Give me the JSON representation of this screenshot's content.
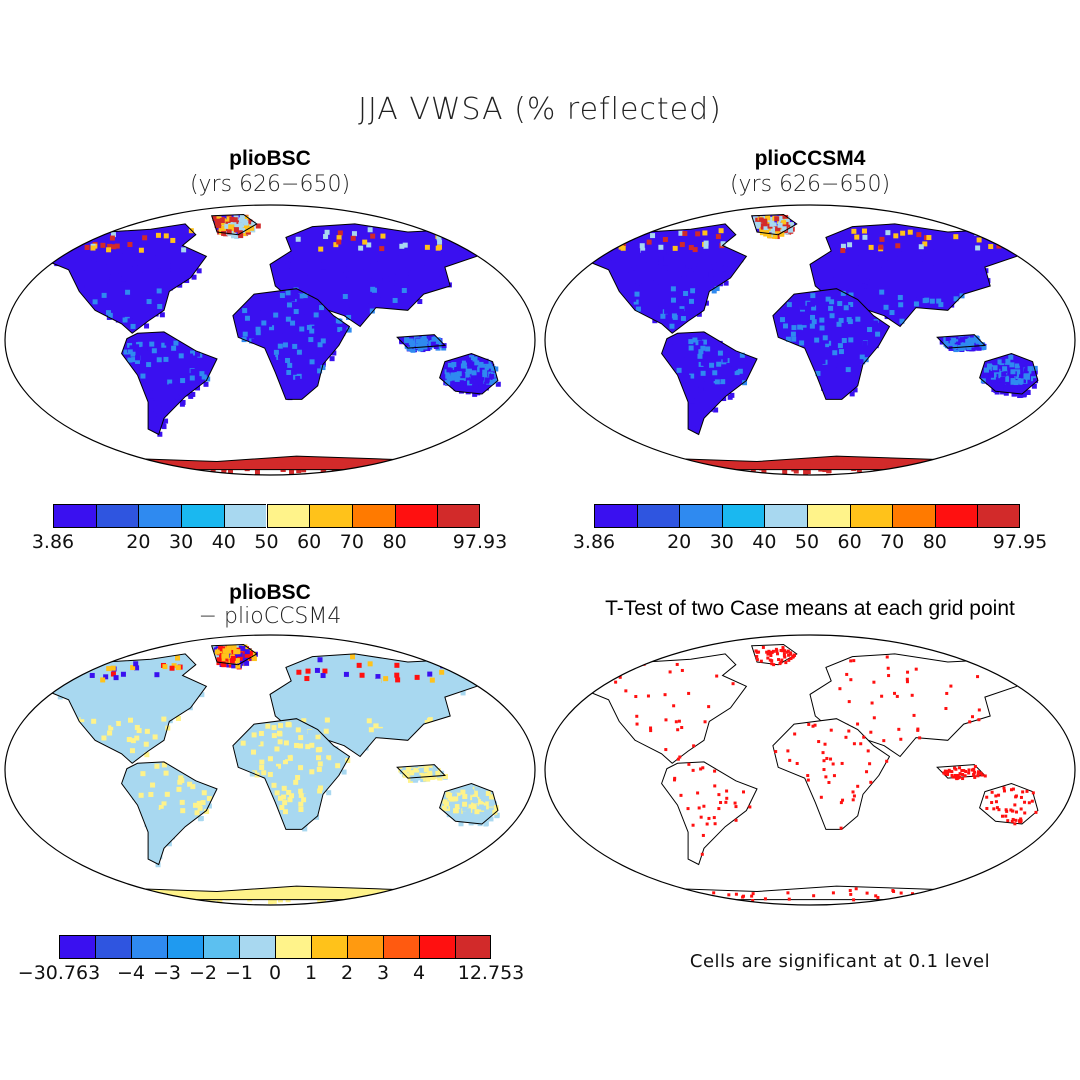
{
  "figure": {
    "title": "JJA VWSA (% reflected)"
  },
  "panels": [
    {
      "title": "plioBSC",
      "subtitle": "(yrs 626−650)",
      "colorbar": {
        "colors": [
          "#3a10f0",
          "#2f55e0",
          "#2f8af0",
          "#1ab8f0",
          "#a8d8f0",
          "#fff38a",
          "#ffc21a",
          "#ff7a00",
          "#ff1010",
          "#d22a2a"
        ],
        "labels": [
          "3.86",
          "20",
          "30",
          "40",
          "50",
          "60",
          "70",
          "80",
          "97.93"
        ],
        "label_bounds": [
          0,
          2,
          3,
          4,
          5,
          6,
          7,
          8,
          10
        ]
      }
    },
    {
      "title": "plioCCSM4",
      "subtitle": "(yrs 626−650)",
      "colorbar": {
        "colors": [
          "#3a10f0",
          "#2f55e0",
          "#2f8af0",
          "#1ab8f0",
          "#a8d8f0",
          "#fff38a",
          "#ffc21a",
          "#ff7a00",
          "#ff1010",
          "#d22a2a"
        ],
        "labels": [
          "3.86",
          "20",
          "30",
          "40",
          "50",
          "60",
          "70",
          "80",
          "97.95"
        ],
        "label_bounds": [
          0,
          2,
          3,
          4,
          5,
          6,
          7,
          8,
          10
        ]
      }
    },
    {
      "title": "plioBSC",
      "subtitle": "− plioCCSM4",
      "colorbar": {
        "colors": [
          "#3a10f0",
          "#2f55e0",
          "#2f8af0",
          "#1f9af0",
          "#5cc0f0",
          "#a8d8f0",
          "#fff38a",
          "#ffc21a",
          "#ff9a10",
          "#ff5a10",
          "#ff1010",
          "#d22a2a"
        ],
        "labels": [
          "−30.763",
          "−4",
          "−3",
          "−2",
          "−1",
          "0",
          "1",
          "2",
          "3",
          "4",
          "12.753"
        ],
        "label_bounds": [
          0,
          2,
          3,
          4,
          5,
          6,
          7,
          8,
          9,
          10,
          12
        ]
      }
    },
    {
      "title": "T-Test of two Case means at each grid point",
      "note": "Cells are significant at 0.1 level"
    }
  ]
}
